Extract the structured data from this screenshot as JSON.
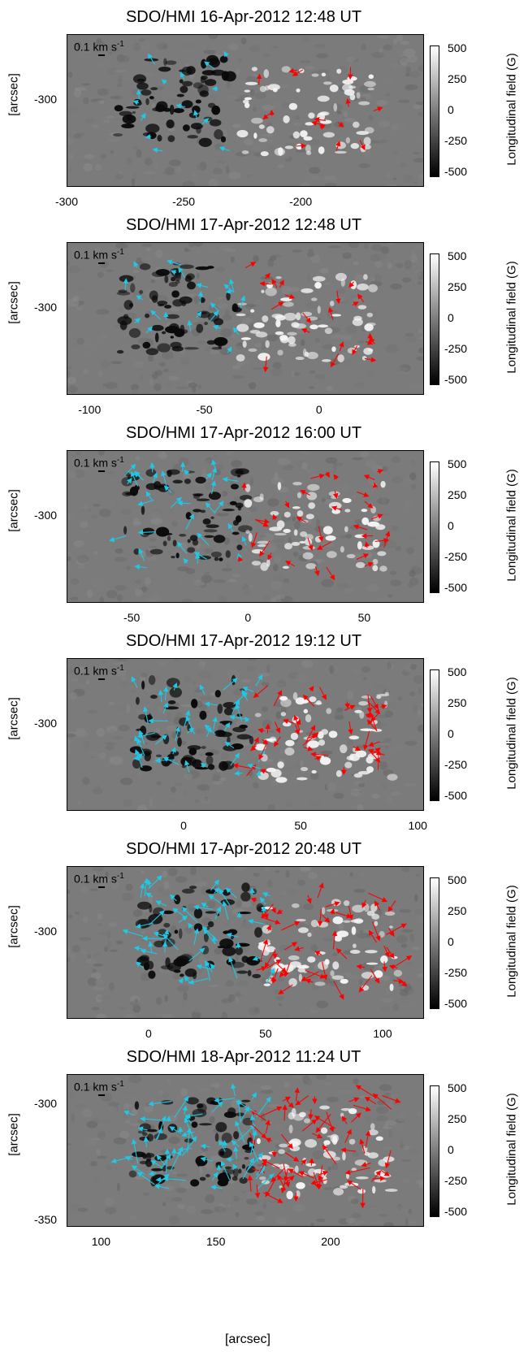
{
  "figure": {
    "colorbar_label": "Longitudinal field (G)",
    "colorbar_ticks": [
      "500",
      "250",
      "0",
      "-250",
      "-500"
    ],
    "y_axis_label": "[arcsec]",
    "x_axis_label": "[arcsec]",
    "velocity_scale_label": "0.1 km s",
    "velocity_scale_exp": "-1",
    "colors": {
      "positive_arrows": "#ff0000",
      "negative_arrows": "#1ec8e6",
      "background": "#7b7b7b"
    }
  },
  "panels": [
    {
      "title": "SDO/HMI 16-Apr-2012 12:48 UT",
      "y_ticks": [
        {
          "label": "-300",
          "value": -300
        }
      ],
      "x_ticks": [
        {
          "label": "-300",
          "value": -300
        },
        {
          "label": "-250",
          "value": -250
        },
        {
          "label": "-200",
          "value": -200
        }
      ],
      "x_range": [
        -300,
        -148
      ],
      "y_range": [
        -340,
        -269
      ]
    },
    {
      "title": "SDO/HMI 17-Apr-2012 12:48 UT",
      "y_ticks": [
        {
          "label": "-300",
          "value": -300
        }
      ],
      "x_ticks": [
        {
          "label": "-100",
          "value": -100
        },
        {
          "label": "-50",
          "value": -50
        },
        {
          "label": "0",
          "value": 0
        }
      ],
      "x_range": [
        -110,
        45
      ],
      "y_range": [
        -340,
        -269
      ]
    },
    {
      "title": "SDO/HMI 17-Apr-2012 16:00 UT",
      "y_ticks": [
        {
          "label": "-300",
          "value": -300
        }
      ],
      "x_ticks": [
        {
          "label": "-50",
          "value": -50
        },
        {
          "label": "0",
          "value": 0
        },
        {
          "label": "50",
          "value": 50
        }
      ],
      "x_range": [
        -78,
        75
      ],
      "y_range": [
        -340,
        -269
      ]
    },
    {
      "title": "SDO/HMI 17-Apr-2012 19:12 UT",
      "y_ticks": [
        {
          "label": "-300",
          "value": -300
        }
      ],
      "x_ticks": [
        {
          "label": "0",
          "value": 0
        },
        {
          "label": "50",
          "value": 50
        },
        {
          "label": "100",
          "value": 100
        }
      ],
      "x_range": [
        -50,
        102
      ],
      "y_range": [
        -340,
        -269
      ]
    },
    {
      "title": "SDO/HMI 17-Apr-2012 20:48 UT",
      "y_ticks": [
        {
          "label": "-300",
          "value": -300
        }
      ],
      "x_ticks": [
        {
          "label": "0",
          "value": 0
        },
        {
          "label": "50",
          "value": 50
        },
        {
          "label": "100",
          "value": 100
        }
      ],
      "x_range": [
        -35,
        117
      ],
      "y_range": [
        -340,
        -269
      ]
    },
    {
      "title": "SDO/HMI 18-Apr-2012 11:24 UT",
      "y_ticks": [
        {
          "label": "-300",
          "value": -300
        },
        {
          "label": "-350",
          "value": -350
        }
      ],
      "x_ticks": [
        {
          "label": "100",
          "value": 100
        },
        {
          "label": "150",
          "value": 150
        },
        {
          "label": "200",
          "value": 200
        }
      ],
      "x_range": [
        85,
        240
      ],
      "y_range": [
        -352,
        -287
      ]
    }
  ]
}
